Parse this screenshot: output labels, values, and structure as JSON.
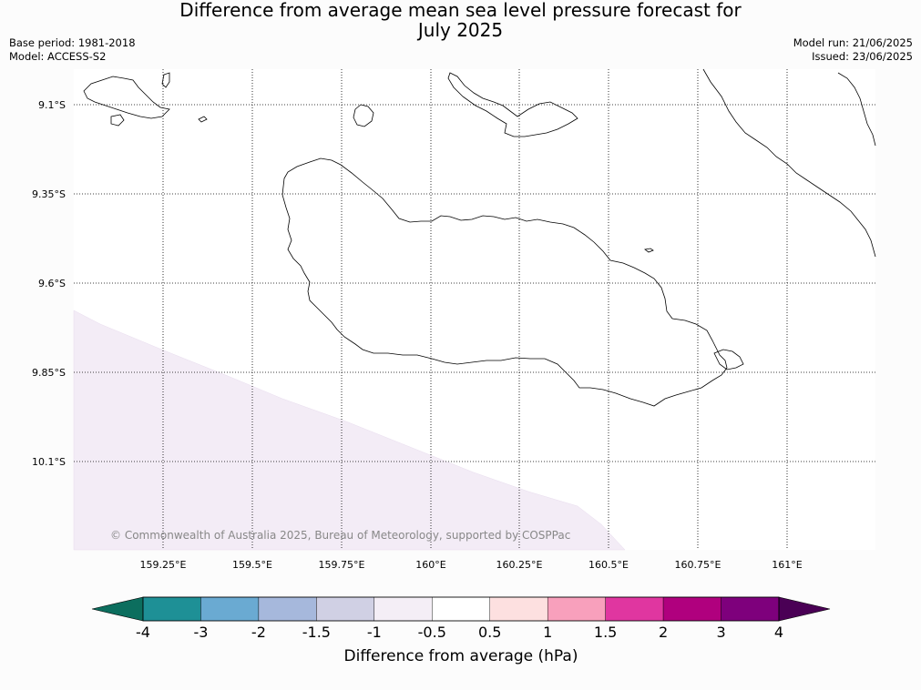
{
  "title": {
    "line1": "Difference from average mean sea level pressure forecast for",
    "line2": "July 2025"
  },
  "meta_left": {
    "base_period": "Base period: 1981-2018",
    "model": "Model: ACCESS-S2"
  },
  "meta_right": {
    "model_run": "Model run: 21/06/2025",
    "issued": "Issued: 23/06/2025"
  },
  "map": {
    "lat_labels": [
      "9.1°S",
      "9.35°S",
      "9.6°S",
      "9.85°S",
      "10.1°S"
    ],
    "lon_labels": [
      "159.25°E",
      "159.5°E",
      "159.75°E",
      "160°E",
      "160.25°E",
      "160.5°E",
      "160.75°E",
      "161°E"
    ],
    "copyright": "© Commonwealth of Australia 2025, Bureau of Meteorology, supported by COSPPac",
    "anomaly_region_color": "#f3ecf6",
    "coastline_color": "#000000"
  },
  "colorbar": {
    "label": "Difference from average (hPa)",
    "tick_labels": [
      "-4",
      "-3",
      "-2",
      "-1.5",
      "-1",
      "-0.5",
      "0.5",
      "1",
      "1.5",
      "2",
      "3",
      "4"
    ],
    "under_color": "#0c6e5e",
    "over_color": "#4a0055",
    "segment_colors": [
      "#1e9096",
      "#6aaad2",
      "#a6b8dc",
      "#d0d0e4",
      "#f4eef6",
      "#ffffff",
      "#fde0e0",
      "#f8a0bc",
      "#e036a0",
      "#b0007e",
      "#7e007c"
    ]
  }
}
